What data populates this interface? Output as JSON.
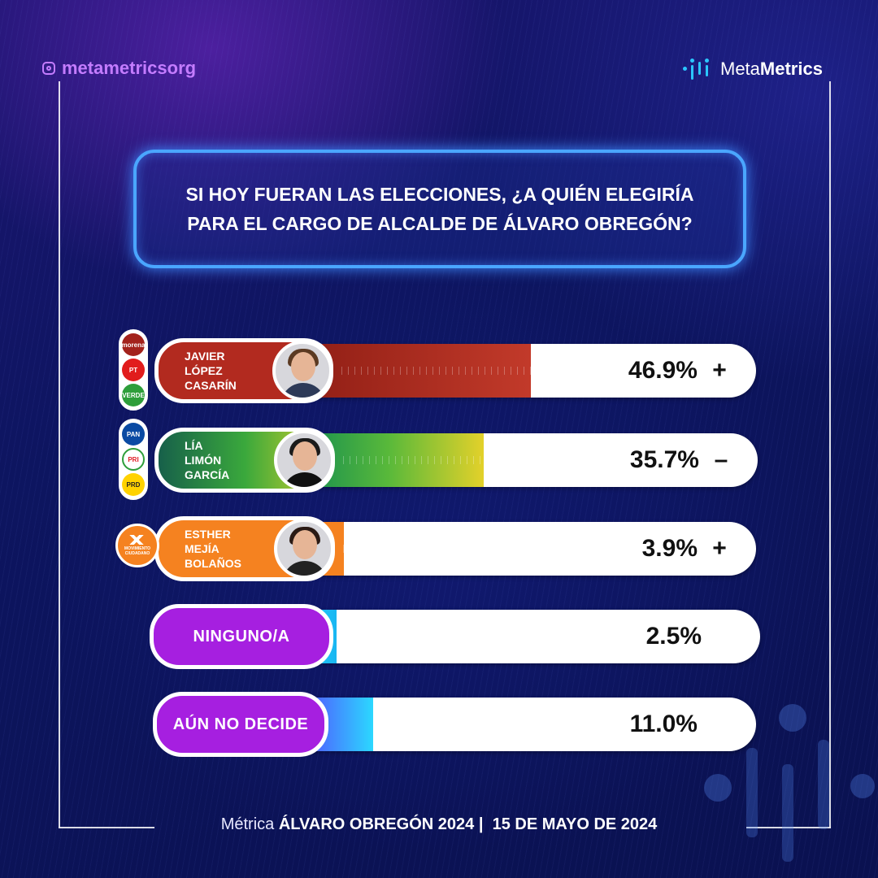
{
  "header": {
    "instagram_handle": "metametricsorg",
    "logo": {
      "part1": "Meta",
      "part2": "Metrics",
      "icon": "metametrics-logo-icon"
    }
  },
  "question": "SI HOY FUERAN LAS ELECCIONES, ¿A QUIÉN ELEGIRÍA PARA EL CARGO DE ALCALDE DE ÁLVARO OBREGÓN?",
  "colors": {
    "background": "#0b0f4d",
    "accent_purple": "#a61fe0",
    "accent_cyan": "#2bd8ff",
    "red": "#b22a1f",
    "orange": "#f58220"
  },
  "parties": {
    "candidate1": [
      "morena",
      "PT",
      "VERDE"
    ],
    "candidate2": [
      "PAN",
      "PRI",
      "PRD"
    ],
    "candidate3": [
      "MOVIMIENTO CIUDADANO"
    ]
  },
  "chart_data": {
    "type": "bar",
    "categories": [
      "JAVIER LÓPEZ CASARÍN",
      "LÍA LIMÓN GARCÍA",
      "ESTHER MEJÍA BOLAÑOS",
      "NINGUNO/A",
      "AÚN NO DECIDE"
    ],
    "name_lines": [
      [
        "JAVIER",
        "LÓPEZ",
        "CASARÍN"
      ],
      [
        "LÍA",
        "LIMÓN",
        "GARCÍA"
      ],
      [
        "ESTHER",
        "MEJÍA",
        "BOLAÑOS"
      ],
      [
        "NINGUNO/A"
      ],
      [
        "AÚN NO DECIDE"
      ]
    ],
    "values": [
      46.9,
      35.7,
      3.9,
      2.5,
      11.0
    ],
    "value_labels": [
      "46.9%",
      "35.7%",
      "3.9%",
      "2.5%",
      "11.0%"
    ],
    "trends": [
      "+",
      "–",
      "+",
      "",
      ""
    ],
    "unit": "%",
    "ylim": [
      0,
      100
    ]
  },
  "footer": {
    "prefix": "Métrica",
    "title": "ÁLVARO OBREGÓN 2024",
    "separator": "|",
    "date": "15 DE MAYO DE 2024"
  }
}
